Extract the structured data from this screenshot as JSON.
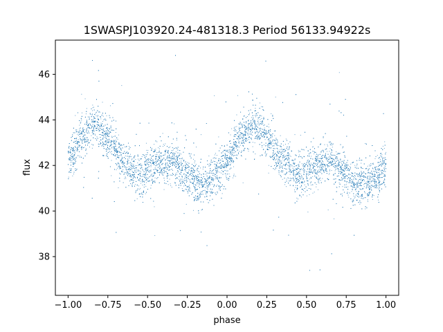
{
  "chart_data": {
    "type": "scatter",
    "title": "1SWASPJ103920.24-481318.3 Period 56133.94922s",
    "xlabel": "phase",
    "ylabel": "flux",
    "xlim": [
      -1.08,
      1.08
    ],
    "ylim": [
      36.3,
      47.5
    ],
    "x_ticks": [
      -1.0,
      -0.75,
      -0.5,
      -0.25,
      0.0,
      0.25,
      0.5,
      0.75,
      1.0
    ],
    "x_tick_labels": [
      "−1.00",
      "−0.75",
      "−0.50",
      "−0.25",
      "0.00",
      "0.25",
      "0.50",
      "0.75",
      "1.00"
    ],
    "y_ticks": [
      38,
      40,
      42,
      44,
      46
    ],
    "y_tick_labels": [
      "38",
      "40",
      "42",
      "44",
      "46"
    ],
    "grid": false,
    "legend": "none",
    "point_color": "#1f77b4",
    "series": [
      {
        "phase_range": [
          -1.0,
          1.0
        ],
        "trend": {
          "phase": [
            -1.0,
            -0.9,
            -0.83,
            -0.75,
            -0.65,
            -0.55,
            -0.45,
            -0.35,
            -0.25,
            -0.15,
            -0.05,
            0.0,
            0.1,
            0.17,
            0.25,
            0.35,
            0.45,
            0.55,
            0.65,
            0.75,
            0.85,
            0.95,
            1.0
          ],
          "flux": [
            42.3,
            43.3,
            43.8,
            43.2,
            42.2,
            41.6,
            42.0,
            42.2,
            41.6,
            41.1,
            41.7,
            42.3,
            43.3,
            43.8,
            43.2,
            42.2,
            41.6,
            42.0,
            42.2,
            41.6,
            41.1,
            41.5,
            42.0
          ]
        },
        "scatter_sd": 0.45,
        "n_points": 9000
      }
    ]
  }
}
